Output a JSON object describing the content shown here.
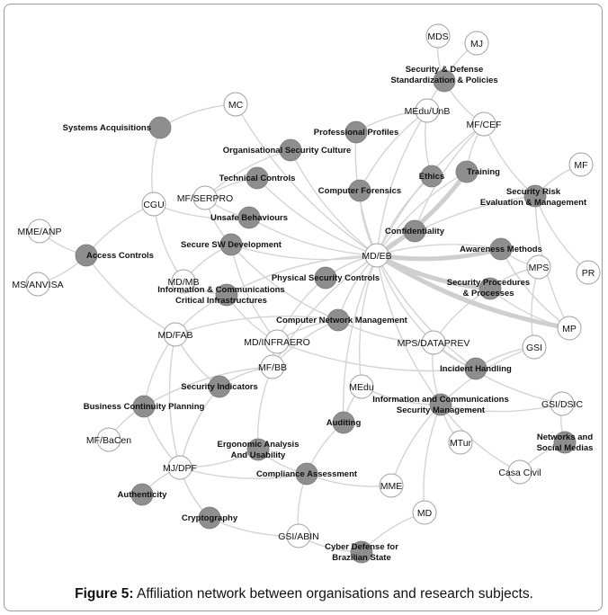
{
  "caption": {
    "label": "Figure 5:",
    "text": "Affiliation network between organisations and research subjects."
  },
  "colors": {
    "topic_fill": "#8e8e8e",
    "org_fill": "#ffffff",
    "org_stroke": "#a0a0a0",
    "edge": "#d4d4d4"
  },
  "nodes": [
    {
      "id": "MDS",
      "label": "MDS",
      "kind": "org"
    },
    {
      "id": "MJ",
      "label": "MJ",
      "kind": "org"
    },
    {
      "id": "SecDef",
      "label": "Security & Defense\nStandardization & Policies",
      "kind": "topic"
    },
    {
      "id": "MC",
      "label": "MC",
      "kind": "org"
    },
    {
      "id": "MEduUnB",
      "label": "MEdu/UnB",
      "kind": "org"
    },
    {
      "id": "MFCEF",
      "label": "MF/CEF",
      "kind": "org"
    },
    {
      "id": "MF",
      "label": "MF",
      "kind": "org"
    },
    {
      "id": "SysAcq",
      "label": "Systems Acquisitions",
      "kind": "topic"
    },
    {
      "id": "ProfProf",
      "label": "Professional Profiles",
      "kind": "topic"
    },
    {
      "id": "OrgCult",
      "label": "Organisational Security Culture",
      "kind": "topic"
    },
    {
      "id": "TechCtrl",
      "label": "Technical Controls",
      "kind": "topic"
    },
    {
      "id": "Ethics",
      "label": "Ethics",
      "kind": "topic"
    },
    {
      "id": "Training",
      "label": "Training",
      "kind": "topic"
    },
    {
      "id": "SecRisk",
      "label": "Security Risk\nEvaluation & Management",
      "kind": "topic"
    },
    {
      "id": "CompFor",
      "label": "Computer Forensics",
      "kind": "topic"
    },
    {
      "id": "CGU",
      "label": "CGU",
      "kind": "org"
    },
    {
      "id": "MFSERPRO",
      "label": "MF/SERPRO",
      "kind": "org"
    },
    {
      "id": "Unsafe",
      "label": "Unsafe Behaviours",
      "kind": "topic"
    },
    {
      "id": "Conf",
      "label": "Confidentiality",
      "kind": "topic"
    },
    {
      "id": "MMEANP",
      "label": "MME/ANP",
      "kind": "org"
    },
    {
      "id": "AccCtrl",
      "label": "Access Controls",
      "kind": "topic"
    },
    {
      "id": "SecSW",
      "label": "Secure SW Development",
      "kind": "topic"
    },
    {
      "id": "MDEB",
      "label": "MD/EB",
      "kind": "org"
    },
    {
      "id": "Awareness",
      "label": "Awareness Methods",
      "kind": "topic"
    },
    {
      "id": "MPS",
      "label": "MPS",
      "kind": "org"
    },
    {
      "id": "PR",
      "label": "PR",
      "kind": "org"
    },
    {
      "id": "MSANVISA",
      "label": "MS/ANVISA",
      "kind": "org"
    },
    {
      "id": "MDMB",
      "label": "MD/MB",
      "kind": "org"
    },
    {
      "id": "PhysSec",
      "label": "Physical Security Controls",
      "kind": "topic"
    },
    {
      "id": "SecProc",
      "label": "Security Procedures\n& Processes",
      "kind": "topic"
    },
    {
      "id": "InfoCrit",
      "label": "Information & Communications\nCritical Infrastructures",
      "kind": "topic"
    },
    {
      "id": "MP",
      "label": "MP",
      "kind": "org"
    },
    {
      "id": "CompNet",
      "label": "Computer Network Management",
      "kind": "topic"
    },
    {
      "id": "MDFAB",
      "label": "MD/FAB",
      "kind": "org"
    },
    {
      "id": "MDINFRAERO",
      "label": "MD/INFRAERO",
      "kind": "org"
    },
    {
      "id": "MPSDATAPREV",
      "label": "MPS/DATAPREV",
      "kind": "org"
    },
    {
      "id": "GSI",
      "label": "GSI",
      "kind": "org"
    },
    {
      "id": "MFBB",
      "label": "MF/BB",
      "kind": "org"
    },
    {
      "id": "Incident",
      "label": "Incident Handling",
      "kind": "topic"
    },
    {
      "id": "SecInd",
      "label": "Security Indicators",
      "kind": "topic"
    },
    {
      "id": "MEdu",
      "label": "MEdu",
      "kind": "org"
    },
    {
      "id": "InfoCommSec",
      "label": "Information and Communications\nSecurity Management",
      "kind": "topic"
    },
    {
      "id": "GSIDSIC",
      "label": "GSI/DSIC",
      "kind": "org"
    },
    {
      "id": "BCP",
      "label": "Business Continuity Planning",
      "kind": "topic"
    },
    {
      "id": "Auditing",
      "label": "Auditing",
      "kind": "topic"
    },
    {
      "id": "MFBaCen",
      "label": "MF/BaCen",
      "kind": "org"
    },
    {
      "id": "Ergo",
      "label": "Ergonomic Analysis\nAnd Usability",
      "kind": "topic"
    },
    {
      "id": "MTur",
      "label": "MTur",
      "kind": "org"
    },
    {
      "id": "Networks",
      "label": "Networks and\nSocial Medias",
      "kind": "topic"
    },
    {
      "id": "MJDPF",
      "label": "MJ/DPF",
      "kind": "org"
    },
    {
      "id": "Compliance",
      "label": "Compliance Assessment",
      "kind": "topic"
    },
    {
      "id": "CasaCivil",
      "label": "Casa Civil",
      "kind": "org"
    },
    {
      "id": "Authenticity",
      "label": "Authenticity",
      "kind": "topic"
    },
    {
      "id": "MME",
      "label": "MME",
      "kind": "org"
    },
    {
      "id": "MD",
      "label": "MD",
      "kind": "org"
    },
    {
      "id": "Crypto",
      "label": "Cryptography",
      "kind": "topic"
    },
    {
      "id": "GSIABIN",
      "label": "GSI/ABIN",
      "kind": "org"
    },
    {
      "id": "CyberDef",
      "label": "Cyber Defense for\nBrazilian State",
      "kind": "topic"
    }
  ],
  "edges": [
    [
      "MDS",
      "SecDef"
    ],
    [
      "MJ",
      "SecDef"
    ],
    [
      "SecDef",
      "MFCEF"
    ],
    [
      "SecDef",
      "MEduUnB"
    ],
    [
      "MC",
      "SysAcq"
    ],
    [
      "MC",
      "MDEB"
    ],
    [
      "SysAcq",
      "CGU"
    ],
    [
      "CGU",
      "AccCtrl"
    ],
    [
      "CGU",
      "MDMB"
    ],
    [
      "CGU",
      "Unsafe"
    ],
    [
      "MMEANP",
      "AccCtrl"
    ],
    [
      "MSANVISA",
      "AccCtrl"
    ],
    [
      "AccCtrl",
      "MDFAB"
    ],
    [
      "MEduUnB",
      "ProfProf"
    ],
    [
      "MEduUnB",
      "Ethics"
    ],
    [
      "MEduUnB",
      "MDEB"
    ],
    [
      "MEduUnB",
      "CompFor"
    ],
    [
      "MFCEF",
      "Training"
    ],
    [
      "MFCEF",
      "SecRisk"
    ],
    [
      "MFCEF",
      "MDEB"
    ],
    [
      "MFCEF",
      "Conf"
    ],
    [
      "MF",
      "SecRisk"
    ],
    [
      "SecRisk",
      "PR"
    ],
    [
      "SecRisk",
      "MP"
    ],
    [
      "SecRisk",
      "MDEB"
    ],
    [
      "ProfProf",
      "MDEB"
    ],
    [
      "OrgCult",
      "MDEB"
    ],
    [
      "OrgCult",
      "MFSERPRO"
    ],
    [
      "TechCtrl",
      "MDEB"
    ],
    [
      "TechCtrl",
      "MFSERPRO"
    ],
    [
      "Ethics",
      "MDEB"
    ],
    [
      "Training",
      "MDEB"
    ],
    [
      "CompFor",
      "MDEB"
    ],
    [
      "Conf",
      "MDEB"
    ],
    [
      "Awareness",
      "MDEB"
    ],
    [
      "Awareness",
      "MPS"
    ],
    [
      "Awareness",
      "MP"
    ],
    [
      "MFSERPRO",
      "Unsafe"
    ],
    [
      "MFSERPRO",
      "SecSW"
    ],
    [
      "Unsafe",
      "MDEB"
    ],
    [
      "SecSW",
      "MDEB"
    ],
    [
      "SecSW",
      "MDMB"
    ],
    [
      "SecSW",
      "MDINFRAERO"
    ],
    [
      "SecSW",
      "CompNet"
    ],
    [
      "MDEB",
      "PhysSec"
    ],
    [
      "MDEB",
      "SecProc"
    ],
    [
      "MDEB",
      "CompNet"
    ],
    [
      "MDEB",
      "MPSDATAPREV"
    ],
    [
      "MDEB",
      "MP"
    ],
    [
      "MDEB",
      "InfoCrit"
    ],
    [
      "MDEB",
      "MEdu"
    ],
    [
      "MDEB",
      "Auditing"
    ],
    [
      "MDEB",
      "MFBB"
    ],
    [
      "MDEB",
      "Incident"
    ],
    [
      "MDEB",
      "InfoCommSec"
    ],
    [
      "MPS",
      "SecProc"
    ],
    [
      "MPS",
      "GSI"
    ],
    [
      "SecProc",
      "MPSDATAPREV"
    ],
    [
      "SecProc",
      "MP"
    ],
    [
      "MDMB",
      "InfoCrit"
    ],
    [
      "InfoCrit",
      "MDFAB"
    ],
    [
      "InfoCrit",
      "MDINFRAERO"
    ],
    [
      "PhysSec",
      "MDINFRAERO"
    ],
    [
      "CompNet",
      "MDINFRAERO"
    ],
    [
      "CompNet",
      "MPSDATAPREV"
    ],
    [
      "CompNet",
      "MFBB"
    ],
    [
      "CompNet",
      "MDFAB"
    ],
    [
      "MDFAB",
      "SecInd"
    ],
    [
      "MDFAB",
      "BCP"
    ],
    [
      "MDFAB",
      "MJDPF"
    ],
    [
      "MDINFRAERO",
      "MFBB"
    ],
    [
      "MDINFRAERO",
      "Incident"
    ],
    [
      "MPSDATAPREV",
      "Incident"
    ],
    [
      "MPSDATAPREV",
      "InfoCommSec"
    ],
    [
      "MPSDATAPREV",
      "GSIDSIC"
    ],
    [
      "GSI",
      "Incident"
    ],
    [
      "GSI",
      "InfoCommSec"
    ],
    [
      "MFBB",
      "SecInd"
    ],
    [
      "MFBB",
      "Ergo"
    ],
    [
      "MFBB",
      "BCP"
    ],
    [
      "MEdu",
      "Auditing"
    ],
    [
      "MEdu",
      "InfoCommSec"
    ],
    [
      "InfoCommSec",
      "GSIDSIC"
    ],
    [
      "InfoCommSec",
      "MTur"
    ],
    [
      "InfoCommSec",
      "CasaCivil"
    ],
    [
      "InfoCommSec",
      "MME"
    ],
    [
      "InfoCommSec",
      "MD"
    ],
    [
      "GSIDSIC",
      "Networks"
    ],
    [
      "Networks",
      "CasaCivil"
    ],
    [
      "BCP",
      "MFBaCen"
    ],
    [
      "BCP",
      "MJDPF"
    ],
    [
      "SecInd",
      "MJDPF"
    ],
    [
      "MJDPF",
      "Ergo"
    ],
    [
      "MJDPF",
      "Compliance"
    ],
    [
      "MJDPF",
      "Authenticity"
    ],
    [
      "MJDPF",
      "Crypto"
    ],
    [
      "Ergo",
      "Compliance"
    ],
    [
      "Auditing",
      "Compliance"
    ],
    [
      "Compliance",
      "MME"
    ],
    [
      "Compliance",
      "GSIABIN"
    ],
    [
      "MD",
      "CyberDef"
    ],
    [
      "GSIABIN",
      "CyberDef"
    ],
    [
      "Crypto",
      "GSIABIN"
    ]
  ],
  "thick_edges": [
    [
      "MDEB",
      "SecProc"
    ],
    [
      "MDEB",
      "MP"
    ],
    [
      "MDEB",
      "Training"
    ],
    [
      "MDEB",
      "Awareness"
    ]
  ]
}
